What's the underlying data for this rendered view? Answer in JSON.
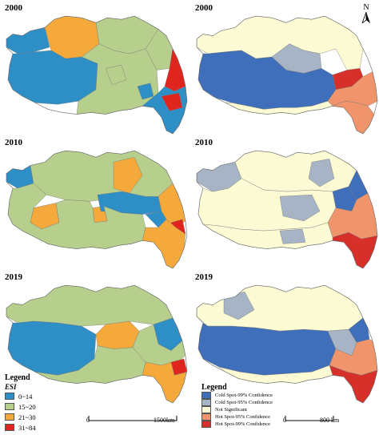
{
  "panels": [
    {
      "year": "2000",
      "col": "left",
      "style": "esi",
      "hot": "t1"
    },
    {
      "year": "2000",
      "col": "right",
      "style": "hot",
      "hot": "t1"
    },
    {
      "year": "2010",
      "col": "left",
      "style": "esi",
      "hot": "t2"
    },
    {
      "year": "2010",
      "col": "right",
      "style": "hot",
      "hot": "t2"
    },
    {
      "year": "2019",
      "col": "left",
      "style": "esi",
      "hot": "t3"
    },
    {
      "year": "2019",
      "col": "right",
      "style": "hot",
      "hot": "t3"
    }
  ],
  "north_label": "N",
  "legend_esi": {
    "title": "Legend",
    "subtitle": "ESI",
    "items": [
      {
        "label": "0~14",
        "color": "#2e8fc7"
      },
      {
        "label": "15~20",
        "color": "#b6cf8c"
      },
      {
        "label": "21~30",
        "color": "#f5a93b"
      },
      {
        "label": "31~84",
        "color": "#e0251f"
      }
    ]
  },
  "legend_hot": {
    "title": "Legend",
    "items": [
      {
        "label": "Cold Spot-99% Confidence",
        "color": "#3f6fba"
      },
      {
        "label": "Cold Spot-95% Confidence",
        "color": "#a6b4c6"
      },
      {
        "label": "Not Significant",
        "color": "#fcfbd3"
      },
      {
        "label": "Hot Spot-95% Confidence",
        "color": "#f0956b"
      },
      {
        "label": "Hot Spot-99% Confidence",
        "color": "#d7302a"
      }
    ]
  },
  "scale_left": {
    "zero": "0",
    "end": "1500km"
  },
  "scale_right": {
    "zero": "0",
    "end": "800 km"
  }
}
